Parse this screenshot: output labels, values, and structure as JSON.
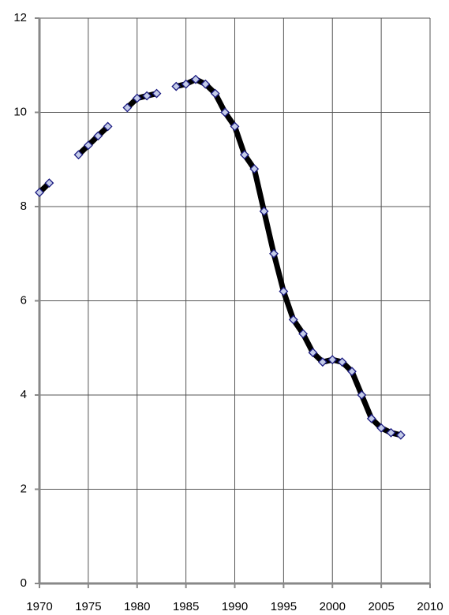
{
  "chart_data": {
    "type": "line",
    "x": [
      1970,
      1971,
      1972,
      1973,
      1974,
      1975,
      1976,
      1977,
      1978,
      1979,
      1980,
      1981,
      1982,
      1983,
      1984,
      1985,
      1986,
      1987,
      1988,
      1989,
      1990,
      1991,
      1992,
      1993,
      1994,
      1995,
      1996,
      1997,
      1998,
      1999,
      2000,
      2001,
      2002,
      2003,
      2004,
      2005,
      2006,
      2007
    ],
    "values": [
      8.3,
      8.5,
      null,
      null,
      9.1,
      9.3,
      9.5,
      9.7,
      null,
      10.1,
      10.3,
      10.35,
      10.4,
      null,
      10.55,
      10.6,
      10.7,
      10.6,
      10.4,
      10.0,
      9.7,
      9.1,
      8.8,
      7.9,
      7.0,
      6.2,
      5.6,
      5.3,
      4.9,
      4.7,
      4.75,
      4.7,
      4.5,
      4.0,
      3.5,
      3.3,
      3.2,
      3.15
    ],
    "color": "#000000",
    "marker_color": "#c4cce8",
    "marker_edge_color": "#1a1a80",
    "xlim": [
      1970,
      2010
    ],
    "xticks": [
      1970,
      1975,
      1980,
      1985,
      1990,
      1995,
      2000,
      2005,
      2010
    ],
    "ylim": [
      0,
      12
    ],
    "yticks": [
      0,
      2,
      4,
      6,
      8,
      10,
      12
    ],
    "grid": true
  }
}
